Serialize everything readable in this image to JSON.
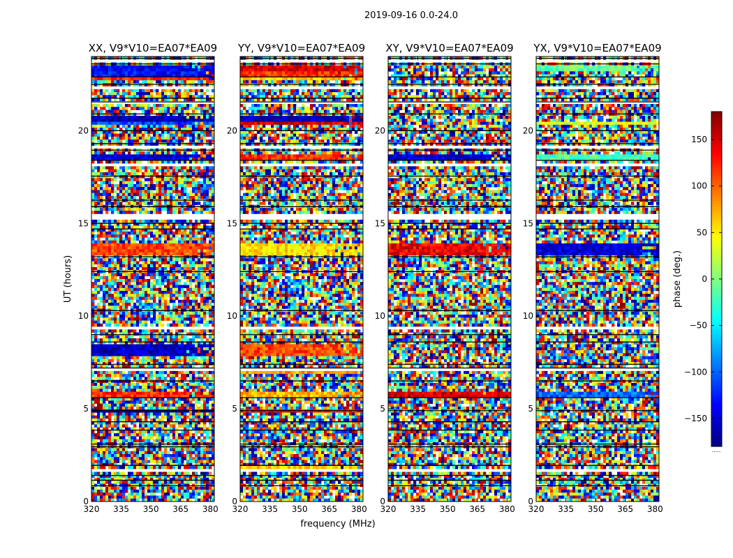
{
  "chart_data": {
    "type": "heatmap",
    "suptitle": "2019-09-16 0.0-24.0",
    "xlabel": "frequency (MHz)",
    "ylabel": "UT (hours)",
    "xlim": [
      320,
      382
    ],
    "ylim": [
      0,
      24
    ],
    "xticks": [
      320,
      335,
      350,
      365,
      380
    ],
    "yticks": [
      0,
      5,
      10,
      15,
      20
    ],
    "panels": [
      {
        "title": "XX, V9*V10=EA07*EA09",
        "pol": "XX",
        "coherent_bands": [
          {
            "ut": [
              23.25,
              23.55
            ],
            "phase": -140
          },
          {
            "ut": [
              22.95,
              23.2
            ],
            "phase": -130
          },
          {
            "ut": [
              22.75,
              22.9
            ],
            "phase": 120
          },
          {
            "ut": [
              20.5,
              20.75
            ],
            "phase": -165
          },
          {
            "ut": [
              20.25,
              20.45
            ],
            "phase": -110
          },
          {
            "ut": [
              18.35,
              18.65
            ],
            "phase": -150
          },
          {
            "ut": [
              13.3,
              13.9
            ],
            "phase": 110
          },
          {
            "ut": [
              7.9,
              8.4
            ],
            "phase": -155
          },
          {
            "ut": [
              5.65,
              5.95
            ],
            "phase": 120
          },
          {
            "ut": [
              4.85,
              4.95
            ],
            "phase": -170
          }
        ]
      },
      {
        "title": "YY, V9*V10=EA07*EA09",
        "pol": "YY",
        "coherent_bands": [
          {
            "ut": [
              23.25,
              23.55
            ],
            "phase": 150
          },
          {
            "ut": [
              22.95,
              23.2
            ],
            "phase": 120
          },
          {
            "ut": [
              22.75,
              22.9
            ],
            "phase": 60
          },
          {
            "ut": [
              20.5,
              20.75
            ],
            "phase": -160
          },
          {
            "ut": [
              20.25,
              20.45
            ],
            "phase": 150
          },
          {
            "ut": [
              18.35,
              18.65
            ],
            "phase": 120
          },
          {
            "ut": [
              13.3,
              13.9
            ],
            "phase": 55
          },
          {
            "ut": [
              7.9,
              8.4
            ],
            "phase": 110
          },
          {
            "ut": [
              6.85,
              7.1
            ],
            "phase": 80
          },
          {
            "ut": [
              5.65,
              5.95
            ],
            "phase": 70
          },
          {
            "ut": [
              4.85,
              4.95
            ],
            "phase": 130
          },
          {
            "ut": [
              1.7,
              1.9
            ],
            "phase": 60
          }
        ]
      },
      {
        "title": "XY, V9*V10=EA07*EA09",
        "pol": "XY",
        "coherent_bands": [
          {
            "ut": [
              18.35,
              18.65
            ],
            "phase": -150
          },
          {
            "ut": [
              13.3,
              13.9
            ],
            "phase": 140
          },
          {
            "ut": [
              5.65,
              5.95
            ],
            "phase": 150
          }
        ]
      },
      {
        "title": "YX, V9*V10=EA07*EA09",
        "pol": "YX",
        "coherent_bands": [
          {
            "ut": [
              23.25,
              23.55
            ],
            "phase": -10
          },
          {
            "ut": [
              20.25,
              20.45
            ],
            "phase": 30
          },
          {
            "ut": [
              18.35,
              18.65
            ],
            "phase": -20
          },
          {
            "ut": [
              13.3,
              13.9
            ],
            "phase": -150
          },
          {
            "ut": [
              5.65,
              5.95
            ],
            "phase": -100
          }
        ]
      }
    ],
    "flagged_ut_ranges": [
      [
        23.7,
        23.78
      ],
      [
        23.05,
        23.1
      ],
      [
        22.2,
        22.4
      ],
      [
        21.45,
        21.6
      ],
      [
        20.1,
        20.2
      ],
      [
        19.05,
        19.12
      ],
      [
        18.1,
        18.2
      ],
      [
        16.9,
        17.0
      ],
      [
        15.2,
        15.55
      ],
      [
        9.25,
        9.5
      ],
      [
        7.0,
        7.15
      ],
      [
        2.05,
        2.12
      ],
      [
        1.6,
        1.68
      ]
    ],
    "gap_lines_ut": [
      23.9,
      23.6,
      22.9,
      22.5,
      21.75,
      21.55,
      20.9,
      20.0,
      19.3,
      18.95,
      18.4,
      17.55,
      16.25,
      15.9,
      15.0,
      14.7,
      13.2,
      12.4,
      10.3,
      9.0,
      8.6,
      7.4,
      7.2,
      6.5,
      5.6,
      4.9,
      4.3,
      3.85,
      3.1,
      2.95,
      1.95,
      1.4,
      1.15,
      0.85
    ],
    "colorbar": {
      "label": "phase (deg.)",
      "cmap": "jet",
      "range": [
        -180,
        180
      ],
      "ticks": [
        -150,
        -100,
        -50,
        0,
        50,
        100,
        150
      ],
      "tick_labels": [
        "−150",
        "−100",
        "−50",
        "0",
        "50",
        "100",
        "150"
      ],
      "footnote": "....."
    }
  }
}
